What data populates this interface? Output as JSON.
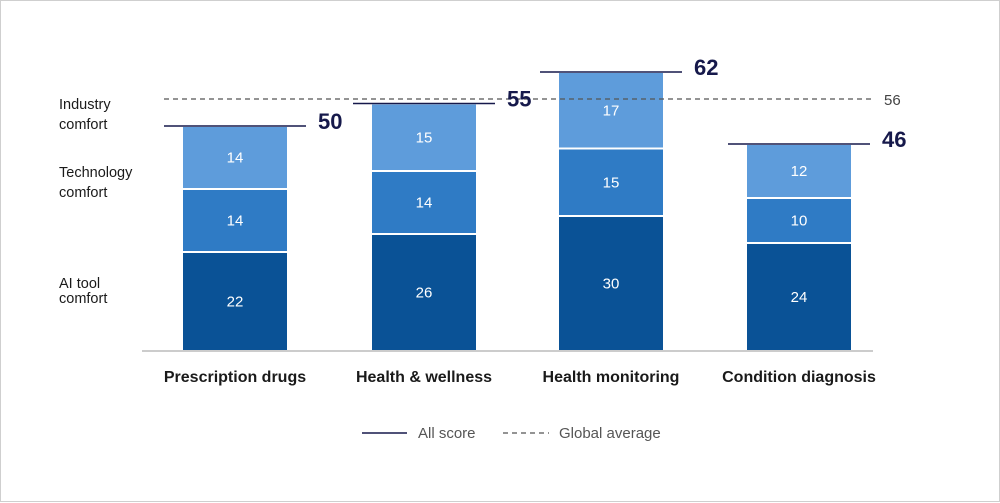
{
  "chart_data": {
    "type": "bar",
    "stacked": true,
    "categories": [
      "Prescription drugs",
      "Health & wellness",
      "Health monitoring",
      "Condition diagnosis"
    ],
    "series": [
      {
        "name": "AI tool comfort",
        "values": [
          22,
          26,
          30,
          24
        ],
        "color": "#0a5296"
      },
      {
        "name": "Technology comfort",
        "values": [
          14,
          14,
          15,
          10
        ],
        "color": "#2f7bc5"
      },
      {
        "name": "Industry comfort",
        "values": [
          14,
          15,
          17,
          12
        ],
        "color": "#5e9cdb"
      }
    ],
    "row_labels": [
      [
        "AI tool",
        "comfort"
      ],
      [
        "Technology",
        "comfort"
      ],
      [
        "Industry",
        "comfort"
      ]
    ],
    "totals": [
      50,
      55,
      62,
      46
    ],
    "global_average": 56,
    "legend": {
      "all_score": "All score",
      "global_average": "Global average"
    },
    "colors": {
      "total_line": "#16194b",
      "average_line": "#555555",
      "axis": "#9a9a9a"
    },
    "ylim": [
      0,
      62
    ]
  }
}
